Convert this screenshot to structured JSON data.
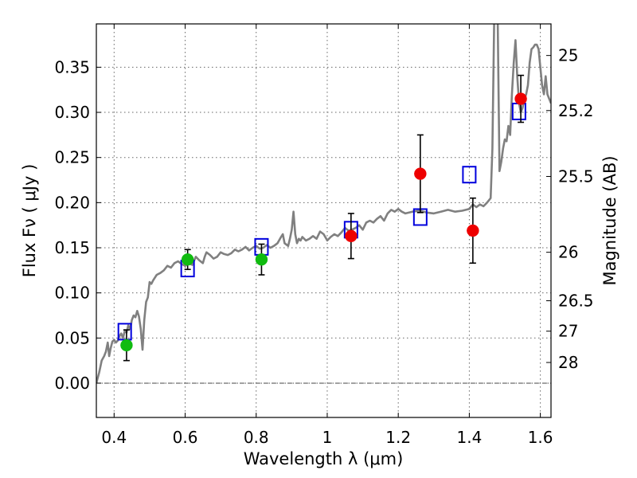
{
  "chart_data": {
    "type": "scatter",
    "xlabel": "Wavelength  λ (μm)",
    "ylabel": "Flux  Fν  ( μJy )",
    "y2label": "Magnitude (AB)",
    "xlim": [
      0.35,
      1.63
    ],
    "ylim": [
      -0.038,
      0.398
    ],
    "grid": true,
    "x_ticks": [
      0.4,
      0.6,
      0.8,
      1.0,
      1.2,
      1.4,
      1.6
    ],
    "x_tick_labels": [
      "0.4",
      "0.6",
      "0.8",
      "1",
      "1.2",
      "1.4",
      "1.6"
    ],
    "y_ticks": [
      0.0,
      0.05,
      0.1,
      0.15,
      0.2,
      0.25,
      0.3,
      0.35
    ],
    "y_tick_labels": [
      "0.00",
      "0.05",
      "0.10",
      "0.15",
      "0.20",
      "0.25",
      "0.30",
      "0.35"
    ],
    "mag_ticks": [
      {
        "label": "25",
        "flux": 0.363
      },
      {
        "label": "25.2",
        "flux": 0.302
      },
      {
        "label": "25.5",
        "flux": 0.229
      },
      {
        "label": "26",
        "flux": 0.145
      },
      {
        "label": "26.5",
        "flux": 0.0913
      },
      {
        "label": "27",
        "flux": 0.0576
      },
      {
        "label": "28",
        "flux": 0.0229
      }
    ],
    "colors": {
      "model": "#808080",
      "green_points": "#10bb10",
      "red_points": "#ee0000",
      "model_photometry": "#0000dd",
      "errorbar": "#000000"
    },
    "series": [
      {
        "name": "model-spectrum",
        "kind": "line",
        "points": [
          [
            0.35,
            0.0
          ],
          [
            0.358,
            0.012
          ],
          [
            0.365,
            0.025
          ],
          [
            0.372,
            0.03
          ],
          [
            0.377,
            0.035
          ],
          [
            0.382,
            0.045
          ],
          [
            0.386,
            0.03
          ],
          [
            0.39,
            0.038
          ],
          [
            0.395,
            0.046
          ],
          [
            0.4,
            0.048
          ],
          [
            0.405,
            0.045
          ],
          [
            0.41,
            0.047
          ],
          [
            0.415,
            0.052
          ],
          [
            0.42,
            0.055
          ],
          [
            0.425,
            0.05
          ],
          [
            0.43,
            0.058
          ],
          [
            0.435,
            0.056
          ],
          [
            0.44,
            0.064
          ],
          [
            0.445,
            0.06
          ],
          [
            0.45,
            0.07
          ],
          [
            0.455,
            0.075
          ],
          [
            0.46,
            0.073
          ],
          [
            0.465,
            0.08
          ],
          [
            0.47,
            0.074
          ],
          [
            0.475,
            0.06
          ],
          [
            0.48,
            0.037
          ],
          [
            0.485,
            0.07
          ],
          [
            0.49,
            0.09
          ],
          [
            0.495,
            0.095
          ],
          [
            0.5,
            0.112
          ],
          [
            0.505,
            0.11
          ],
          [
            0.51,
            0.114
          ],
          [
            0.52,
            0.12
          ],
          [
            0.53,
            0.122
          ],
          [
            0.54,
            0.125
          ],
          [
            0.55,
            0.13
          ],
          [
            0.56,
            0.128
          ],
          [
            0.57,
            0.133
          ],
          [
            0.58,
            0.135
          ],
          [
            0.59,
            0.132
          ],
          [
            0.6,
            0.13
          ],
          [
            0.61,
            0.133
          ],
          [
            0.62,
            0.131
          ],
          [
            0.63,
            0.14
          ],
          [
            0.64,
            0.136
          ],
          [
            0.65,
            0.133
          ],
          [
            0.655,
            0.14
          ],
          [
            0.66,
            0.145
          ],
          [
            0.67,
            0.142
          ],
          [
            0.68,
            0.138
          ],
          [
            0.69,
            0.14
          ],
          [
            0.7,
            0.145
          ],
          [
            0.71,
            0.143
          ],
          [
            0.72,
            0.142
          ],
          [
            0.73,
            0.144
          ],
          [
            0.74,
            0.148
          ],
          [
            0.75,
            0.146
          ],
          [
            0.76,
            0.148
          ],
          [
            0.77,
            0.151
          ],
          [
            0.78,
            0.147
          ],
          [
            0.79,
            0.15
          ],
          [
            0.8,
            0.152
          ],
          [
            0.81,
            0.149
          ],
          [
            0.82,
            0.15
          ],
          [
            0.83,
            0.153
          ],
          [
            0.84,
            0.15
          ],
          [
            0.85,
            0.152
          ],
          [
            0.86,
            0.155
          ],
          [
            0.87,
            0.162
          ],
          [
            0.875,
            0.165
          ],
          [
            0.88,
            0.155
          ],
          [
            0.89,
            0.152
          ],
          [
            0.895,
            0.16
          ],
          [
            0.9,
            0.17
          ],
          [
            0.905,
            0.19
          ],
          [
            0.91,
            0.165
          ],
          [
            0.915,
            0.155
          ],
          [
            0.92,
            0.16
          ],
          [
            0.925,
            0.158
          ],
          [
            0.93,
            0.162
          ],
          [
            0.94,
            0.158
          ],
          [
            0.95,
            0.16
          ],
          [
            0.96,
            0.163
          ],
          [
            0.97,
            0.16
          ],
          [
            0.98,
            0.168
          ],
          [
            0.99,
            0.165
          ],
          [
            1.0,
            0.158
          ],
          [
            1.01,
            0.162
          ],
          [
            1.02,
            0.165
          ],
          [
            1.03,
            0.163
          ],
          [
            1.04,
            0.167
          ],
          [
            1.05,
            0.172
          ],
          [
            1.06,
            0.169
          ],
          [
            1.07,
            0.17
          ],
          [
            1.08,
            0.172
          ],
          [
            1.09,
            0.175
          ],
          [
            1.1,
            0.17
          ],
          [
            1.11,
            0.178
          ],
          [
            1.12,
            0.18
          ],
          [
            1.13,
            0.178
          ],
          [
            1.14,
            0.182
          ],
          [
            1.15,
            0.185
          ],
          [
            1.16,
            0.18
          ],
          [
            1.17,
            0.188
          ],
          [
            1.18,
            0.192
          ],
          [
            1.19,
            0.19
          ],
          [
            1.2,
            0.193
          ],
          [
            1.21,
            0.19
          ],
          [
            1.22,
            0.188
          ],
          [
            1.24,
            0.19
          ],
          [
            1.26,
            0.191
          ],
          [
            1.28,
            0.189
          ],
          [
            1.3,
            0.188
          ],
          [
            1.32,
            0.19
          ],
          [
            1.34,
            0.192
          ],
          [
            1.36,
            0.19
          ],
          [
            1.38,
            0.191
          ],
          [
            1.4,
            0.193
          ],
          [
            1.41,
            0.198
          ],
          [
            1.42,
            0.195
          ],
          [
            1.43,
            0.198
          ],
          [
            1.44,
            0.196
          ],
          [
            1.45,
            0.2
          ],
          [
            1.46,
            0.205
          ],
          [
            1.465,
            0.26
          ],
          [
            1.47,
            0.4
          ],
          [
            1.475,
            0.4
          ],
          [
            1.48,
            0.4
          ],
          [
            1.485,
            0.235
          ],
          [
            1.49,
            0.245
          ],
          [
            1.495,
            0.26
          ],
          [
            1.5,
            0.27
          ],
          [
            1.505,
            0.268
          ],
          [
            1.51,
            0.285
          ],
          [
            1.515,
            0.275
          ],
          [
            1.52,
            0.32
          ],
          [
            1.525,
            0.355
          ],
          [
            1.53,
            0.38
          ],
          [
            1.535,
            0.34
          ],
          [
            1.54,
            0.31
          ],
          [
            1.545,
            0.3
          ],
          [
            1.55,
            0.305
          ],
          [
            1.555,
            0.315
          ],
          [
            1.56,
            0.32
          ],
          [
            1.565,
            0.33
          ],
          [
            1.57,
            0.355
          ],
          [
            1.575,
            0.37
          ],
          [
            1.58,
            0.372
          ],
          [
            1.585,
            0.375
          ],
          [
            1.59,
            0.375
          ],
          [
            1.595,
            0.37
          ],
          [
            1.6,
            0.35
          ],
          [
            1.605,
            0.33
          ],
          [
            1.61,
            0.32
          ],
          [
            1.615,
            0.34
          ],
          [
            1.62,
            0.32
          ],
          [
            1.63,
            0.31
          ]
        ]
      },
      {
        "name": "model-photometry",
        "kind": "open-square",
        "points": [
          {
            "x": 0.43,
            "y": 0.057
          },
          {
            "x": 0.607,
            "y": 0.127
          },
          {
            "x": 0.815,
            "y": 0.151
          },
          {
            "x": 1.067,
            "y": 0.17
          },
          {
            "x": 1.262,
            "y": 0.184
          },
          {
            "x": 1.4,
            "y": 0.231
          },
          {
            "x": 1.54,
            "y": 0.301
          }
        ]
      },
      {
        "name": "observed-optical",
        "kind": "point-errorbar",
        "color": "green",
        "points": [
          {
            "x": 0.435,
            "y": 0.042,
            "err": 0.017
          },
          {
            "x": 0.607,
            "y": 0.137,
            "err": 0.011
          },
          {
            "x": 0.815,
            "y": 0.137,
            "err": 0.017
          }
        ]
      },
      {
        "name": "observed-infrared",
        "kind": "point-errorbar",
        "color": "red",
        "points": [
          {
            "x": 1.067,
            "y": 0.163,
            "err": 0.025
          },
          {
            "x": 1.262,
            "y": 0.232,
            "err": 0.043
          },
          {
            "x": 1.41,
            "y": 0.169,
            "err": 0.036
          },
          {
            "x": 1.545,
            "y": 0.315,
            "err": 0.026
          }
        ]
      }
    ]
  }
}
